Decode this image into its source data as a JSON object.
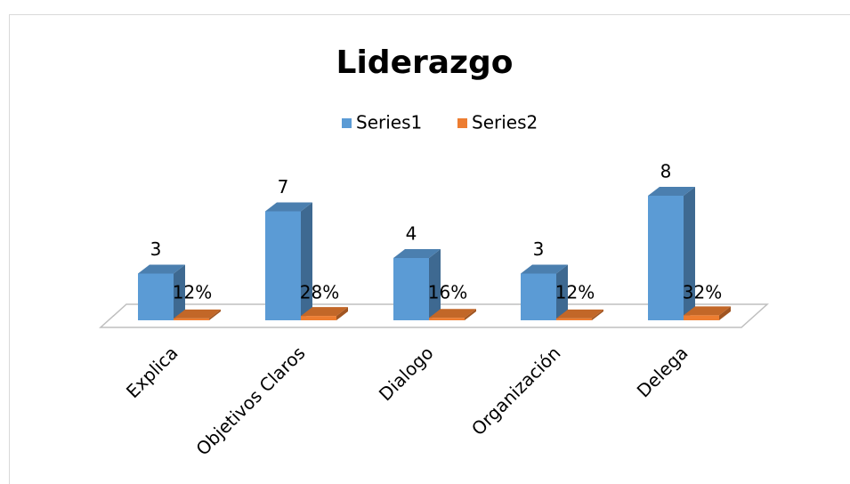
{
  "chart_data": {
    "type": "bar3d",
    "title": "Liderazgo",
    "categories": [
      "Explica",
      "Objetivos Claros",
      "Dialogo",
      "Organización",
      "Delega"
    ],
    "series": [
      {
        "name": "Series1",
        "color": "#5b9bd5",
        "values": [
          3,
          7,
          4,
          3,
          8
        ]
      },
      {
        "name": "Series2",
        "color": "#ed7d31",
        "values": [
          0.12,
          0.28,
          0.16,
          0.12,
          0.32
        ],
        "value_labels": [
          "12%",
          "28%",
          "16%",
          "12%",
          "32%"
        ]
      }
    ],
    "ylim": [
      0,
      10
    ],
    "legend": "top"
  }
}
